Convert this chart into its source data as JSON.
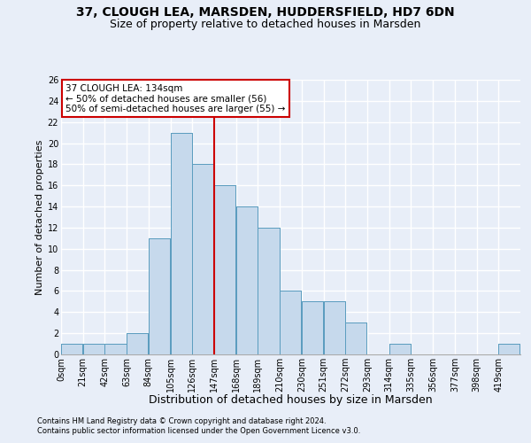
{
  "title1": "37, CLOUGH LEA, MARSDEN, HUDDERSFIELD, HD7 6DN",
  "title2": "Size of property relative to detached houses in Marsden",
  "xlabel": "Distribution of detached houses by size in Marsden",
  "ylabel": "Number of detached properties",
  "footnote1": "Contains HM Land Registry data © Crown copyright and database right 2024.",
  "footnote2": "Contains public sector information licensed under the Open Government Licence v3.0.",
  "bar_labels": [
    "0sqm",
    "21sqm",
    "42sqm",
    "63sqm",
    "84sqm",
    "105sqm",
    "126sqm",
    "147sqm",
    "168sqm",
    "189sqm",
    "210sqm",
    "230sqm",
    "251sqm",
    "272sqm",
    "293sqm",
    "314sqm",
    "335sqm",
    "356sqm",
    "377sqm",
    "398sqm",
    "419sqm"
  ],
  "bar_values": [
    1,
    1,
    1,
    2,
    11,
    21,
    18,
    16,
    14,
    12,
    6,
    5,
    5,
    3,
    0,
    1,
    0,
    0,
    0,
    0,
    1
  ],
  "bar_color": "#c6d9ec",
  "bar_edge_color": "#5b9dbf",
  "vline_x_idx": 6,
  "vline_color": "#cc0000",
  "annotation_line1": "37 CLOUGH LEA: 134sqm",
  "annotation_line2": "← 50% of detached houses are smaller (56)",
  "annotation_line3": "50% of semi-detached houses are larger (55) →",
  "annotation_box_facecolor": "#ffffff",
  "annotation_box_edgecolor": "#cc0000",
  "ylim": [
    0,
    26
  ],
  "yticks": [
    0,
    2,
    4,
    6,
    8,
    10,
    12,
    14,
    16,
    18,
    20,
    22,
    24,
    26
  ],
  "bg_color": "#e8eef8",
  "plot_bg_color": "#e8eef8",
  "grid_color": "#ffffff",
  "title1_fontsize": 10,
  "title2_fontsize": 9,
  "xlabel_fontsize": 9,
  "ylabel_fontsize": 8,
  "tick_fontsize": 7,
  "bin_width": 21
}
